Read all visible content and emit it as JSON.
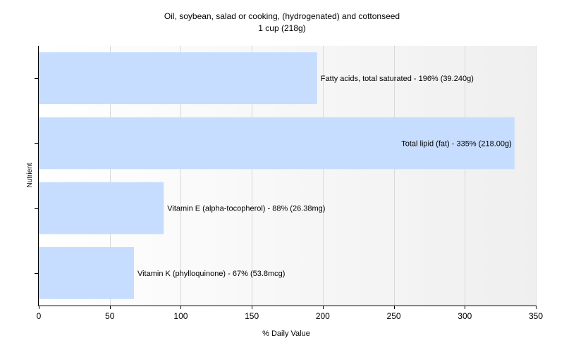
{
  "chart_data": {
    "type": "bar",
    "orientation": "horizontal",
    "title": "Oil, soybean, salad or cooking, (hydrogenated) and cottonseed",
    "subtitle": "1 cup (218g)",
    "xlabel": "% Daily Value",
    "ylabel": "Nutrient",
    "xlim": [
      0,
      350
    ],
    "xticks": [
      0,
      50,
      100,
      150,
      200,
      250,
      300,
      350
    ],
    "grid": true,
    "bar_color": "#c6ddff",
    "categories": [
      "Fatty acids, total saturated",
      "Total lipid (fat)",
      "Vitamin E (alpha-tocopherol)",
      "Vitamin K (phylloquinone)"
    ],
    "values": [
      196,
      335,
      88,
      67
    ],
    "labels": [
      "Fatty acids, total saturated - 196% (39.240g)",
      "Total lipid (fat) - 335% (218.00g)",
      "Vitamin E (alpha-tocopherol) - 88% (26.38mg)",
      "Vitamin K (phylloquinone) - 67% (53.8mcg)"
    ]
  }
}
